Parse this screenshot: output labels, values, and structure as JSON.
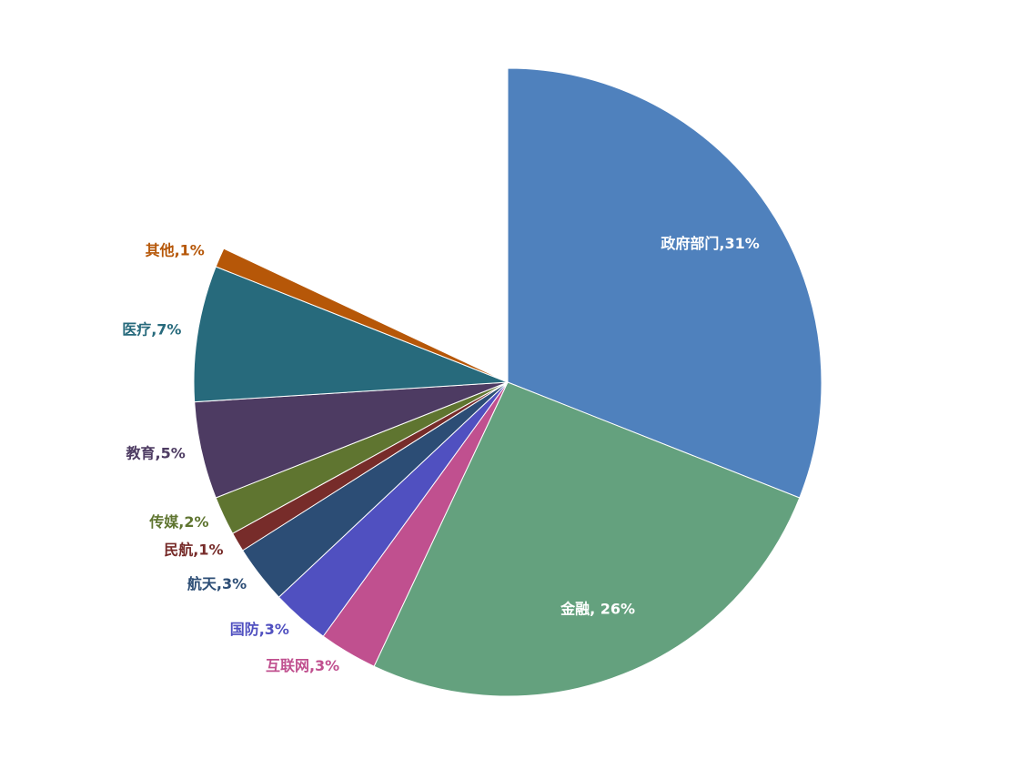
{
  "chart_data": {
    "type": "pie",
    "values": [
      31,
      26,
      3,
      3,
      3,
      1,
      2,
      5,
      7,
      1
    ],
    "value_labels": [
      "政府部门,31%",
      "金融, 26%",
      "互联网,3%",
      "国防,3%",
      "航天,3%",
      "民航,1%",
      "传媒,2%",
      "教育,5%",
      "医疗,7%",
      "其他,1%"
    ],
    "colors": [
      "#4f81bd",
      "#64a17e",
      "#c0508f",
      "#5050c0",
      "#2c4d75",
      "#772c2a",
      "#5f7530",
      "#4d3b62",
      "#276a7c",
      "#b65708"
    ]
  }
}
